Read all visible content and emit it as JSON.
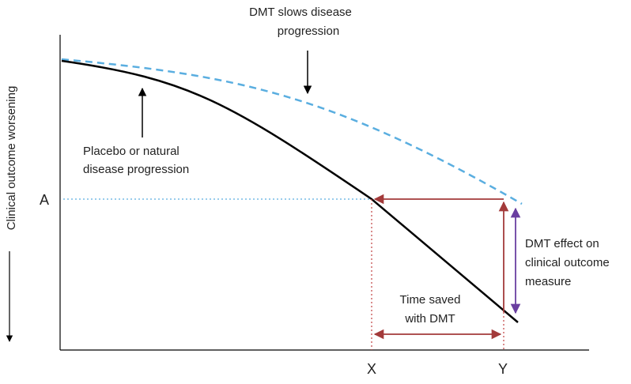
{
  "annotations": {
    "dmt_slows_line1": "DMT slows disease",
    "dmt_slows_line2": "progression",
    "placebo_line1": "Placebo or natural",
    "placebo_line2": "disease progression",
    "effect_line1": "DMT effect on",
    "effect_line2": "clinical outcome",
    "effect_line3": "measure",
    "time_saved_line1": "Time saved",
    "time_saved_line2": "with DMT"
  },
  "axes": {
    "y_label": "Clinical outcome worsening",
    "y_marker": "A",
    "x_marker_1": "X",
    "x_marker_2": "Y"
  },
  "colors": {
    "placebo_curve": "#000000",
    "dmt_curve": "#5aaee0",
    "red_arrows": "#a33a3a",
    "purple_arrow": "#6a3fa0",
    "level_line": "#5aaee0"
  }
}
